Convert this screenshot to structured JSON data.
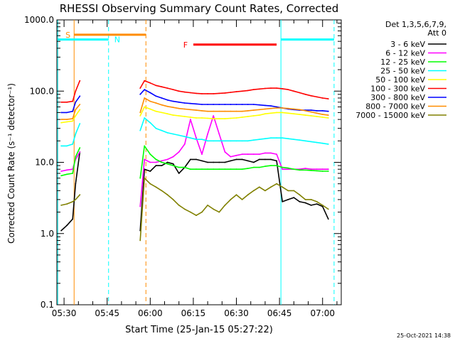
{
  "chart_data": {
    "type": "line",
    "title": "RHESSI Observing Summary Count Rates, Corrected",
    "xlabel": "Start Time (25-Jan-15 05:27:22)",
    "ylabel": "Corrected Count Rate (s⁻¹ detector⁻¹)",
    "y_scale": "log",
    "ylim": [
      0.1,
      1000
    ],
    "y_ticks": [
      {
        "v": 0.1,
        "label": "0.1"
      },
      {
        "v": 1,
        "label": "1.0"
      },
      {
        "v": 10,
        "label": "10.0"
      },
      {
        "v": 100,
        "label": "100.0"
      },
      {
        "v": 1000,
        "label": "1000.0"
      }
    ],
    "xlim_minutes": [
      -2.5,
      96.5
    ],
    "x_ticks": [
      {
        "m": 0,
        "label": "05:30"
      },
      {
        "m": 15,
        "label": "05:45"
      },
      {
        "m": 30,
        "label": "06:00"
      },
      {
        "m": 45,
        "label": "06:15"
      },
      {
        "m": 60,
        "label": "06:30"
      },
      {
        "m": 75,
        "label": "06:45"
      },
      {
        "m": 90,
        "label": "07:00"
      }
    ],
    "legend_header": [
      "Det 1,3,5,6,7,9,",
      "Att 0"
    ],
    "legend_position": "right",
    "series": [
      {
        "name": "3 - 6 keV",
        "color": "#000000",
        "x": [
          -1,
          1,
          3,
          4,
          5.5,
          26.5,
          28,
          30,
          32,
          34,
          36,
          38,
          40,
          42,
          44,
          46,
          48,
          50,
          52,
          54,
          56,
          58,
          60,
          62,
          64,
          66,
          68,
          70,
          72,
          74,
          76,
          78,
          80,
          82,
          84,
          86,
          88,
          90,
          92
        ],
        "y": [
          1.1,
          1.3,
          1.6,
          5,
          14,
          1.1,
          8,
          7.5,
          9,
          9,
          10,
          9.5,
          7,
          8.5,
          11,
          11,
          10.5,
          10,
          10,
          10,
          10,
          10.5,
          11,
          11,
          10.5,
          10,
          11,
          11,
          11,
          10.5,
          2.8,
          3,
          3.2,
          2.8,
          2.7,
          2.5,
          2.6,
          2.4,
          1.6
        ]
      },
      {
        "name": "6 - 12 keV",
        "color": "#ff00ff",
        "x": [
          -1,
          1,
          3,
          4,
          5.5,
          26.5,
          28,
          30,
          32,
          34,
          36,
          38,
          40,
          42,
          44,
          46,
          48,
          50,
          52,
          54,
          56,
          58,
          60,
          62,
          64,
          66,
          68,
          70,
          72,
          74,
          76,
          78,
          80,
          82,
          84,
          86,
          88,
          90,
          92
        ],
        "y": [
          7.5,
          7.8,
          8,
          11,
          14,
          2.4,
          11,
          10,
          10,
          10.5,
          11,
          12,
          14,
          18,
          40,
          22,
          13,
          25,
          45,
          25,
          14,
          12,
          12.5,
          13,
          13,
          13,
          13,
          13.5,
          13.5,
          13,
          8,
          8,
          8,
          8,
          8.2,
          8,
          8,
          8,
          8
        ]
      },
      {
        "name": "12 - 25 keV",
        "color": "#00ff00",
        "x": [
          -1,
          1,
          3,
          4,
          5.5,
          26.5,
          28,
          30,
          32,
          34,
          36,
          38,
          40,
          42,
          44,
          46,
          48,
          50,
          52,
          54,
          56,
          58,
          60,
          62,
          64,
          66,
          68,
          70,
          72,
          74,
          76,
          78,
          80,
          82,
          84,
          86,
          88,
          90,
          92
        ],
        "y": [
          6.5,
          6.8,
          7,
          12,
          16,
          6,
          17,
          13,
          11,
          10,
          9.5,
          9,
          8.5,
          8.5,
          8,
          8,
          8,
          8,
          8,
          8,
          8,
          8,
          8,
          8,
          8.2,
          8.5,
          8.5,
          8.8,
          9,
          9,
          8.5,
          8.3,
          8,
          7.8,
          7.8,
          7.7,
          7.6,
          7.5,
          7.5
        ]
      },
      {
        "name": "25 - 50 keV",
        "color": "#00ffff",
        "x": [
          -1,
          1,
          3,
          4,
          5.5,
          26.5,
          28,
          30,
          32,
          34,
          36,
          38,
          40,
          42,
          44,
          46,
          48,
          50,
          52,
          54,
          56,
          58,
          60,
          62,
          64,
          66,
          68,
          70,
          72,
          74,
          76,
          78,
          80,
          82,
          84,
          86,
          88,
          90,
          92
        ],
        "y": [
          17,
          17,
          18,
          25,
          35,
          28,
          42,
          36,
          30,
          28,
          26,
          25,
          24,
          23,
          22,
          21,
          21,
          20,
          20,
          20,
          20,
          20,
          20,
          20,
          20,
          20.5,
          21,
          21.5,
          22,
          22,
          22,
          21.5,
          21,
          20.5,
          20,
          19.5,
          19,
          18.5,
          18
        ]
      },
      {
        "name": "50 - 100 keV",
        "color": "#ffff00",
        "x": [
          -1,
          1,
          3,
          4,
          5.5,
          26.5,
          28,
          30,
          32,
          34,
          36,
          38,
          40,
          42,
          44,
          46,
          48,
          50,
          52,
          54,
          56,
          58,
          60,
          62,
          64,
          66,
          68,
          70,
          72,
          74,
          76,
          78,
          80,
          82,
          84,
          86,
          88,
          90,
          92
        ],
        "y": [
          36,
          37,
          38,
          45,
          55,
          45,
          60,
          56,
          52,
          50,
          48,
          46,
          45,
          44,
          43,
          42,
          42,
          41.5,
          41,
          41,
          41,
          41.5,
          42,
          43,
          44,
          45,
          46,
          48,
          49,
          50,
          50,
          49,
          48,
          47,
          46,
          45,
          44,
          43,
          42
        ]
      },
      {
        "name": "100 - 300 keV",
        "color": "#ff0000",
        "x": [
          -1,
          1,
          3,
          4,
          5.5,
          26.5,
          28,
          30,
          32,
          34,
          36,
          38,
          40,
          42,
          44,
          46,
          48,
          50,
          52,
          54,
          56,
          58,
          60,
          62,
          64,
          66,
          68,
          70,
          72,
          74,
          76,
          78,
          80,
          82,
          84,
          86,
          88,
          90,
          92
        ],
        "y": [
          70,
          70,
          72,
          100,
          140,
          110,
          140,
          130,
          120,
          115,
          110,
          105,
          100,
          97,
          95,
          93,
          92,
          92,
          92,
          93,
          94,
          96,
          98,
          100,
          102,
          105,
          107,
          109,
          110,
          110,
          108,
          105,
          100,
          95,
          90,
          86,
          83,
          80,
          78
        ]
      },
      {
        "name": "300 - 800 keV",
        "color": "#0000ff",
        "x": [
          -1,
          1,
          3,
          4,
          5.5,
          26.5,
          28,
          30,
          32,
          34,
          36,
          38,
          40,
          42,
          44,
          46,
          48,
          50,
          52,
          54,
          56,
          58,
          60,
          62,
          64,
          66,
          68,
          70,
          72,
          74,
          76,
          78,
          80,
          82,
          84,
          86,
          88,
          90,
          92
        ],
        "y": [
          50,
          50,
          52,
          70,
          85,
          90,
          105,
          95,
          85,
          80,
          75,
          72,
          70,
          68,
          67,
          66,
          65,
          65,
          65,
          65,
          65,
          65,
          65,
          65,
          65,
          65,
          64,
          63,
          62,
          60,
          58,
          56,
          55,
          54,
          54,
          54,
          53,
          53,
          52
        ]
      },
      {
        "name": "800 - 7000 keV",
        "color": "#ff8c00",
        "x": [
          -1,
          1,
          3,
          4,
          5.5,
          26.5,
          28,
          30,
          32,
          34,
          36,
          38,
          40,
          42,
          44,
          46,
          48,
          50,
          52,
          54,
          56,
          58,
          60,
          62,
          64,
          66,
          68,
          70,
          72,
          74,
          76,
          78,
          80,
          82,
          84,
          86,
          88,
          90,
          92
        ],
        "y": [
          40,
          40,
          41,
          55,
          65,
          50,
          80,
          72,
          68,
          64,
          61,
          59,
          57,
          56,
          55,
          54,
          53,
          52,
          52,
          52,
          52,
          52,
          52,
          52,
          53,
          54,
          55,
          56,
          57,
          58,
          58,
          57,
          56,
          55,
          53,
          51,
          49,
          47,
          46
        ]
      },
      {
        "name": "7000 - 15000 keV",
        "color": "#808000",
        "x": [
          -1,
          1,
          3,
          4,
          5.5,
          26.5,
          28,
          30,
          32,
          34,
          36,
          38,
          40,
          42,
          44,
          46,
          48,
          50,
          52,
          54,
          56,
          58,
          60,
          62,
          64,
          66,
          68,
          70,
          72,
          74,
          76,
          78,
          80,
          82,
          84,
          86,
          88,
          90,
          92
        ],
        "y": [
          2.5,
          2.6,
          2.8,
          3,
          3.5,
          0.8,
          6,
          5,
          4.5,
          4,
          3.5,
          3,
          2.5,
          2.2,
          2,
          1.8,
          2,
          2.5,
          2.2,
          2,
          2.5,
          3,
          3.5,
          3,
          3.5,
          4,
          4.5,
          4,
          4.5,
          5,
          4.5,
          4,
          4,
          3.5,
          3,
          3,
          2.8,
          2.5,
          2.2
        ]
      }
    ],
    "markers": [
      {
        "type": "vline",
        "m": 3.5,
        "color": "#ff8c00",
        "style": "solid"
      },
      {
        "type": "vline",
        "m": 28.5,
        "color": "#ff8c00",
        "style": "dashed"
      },
      {
        "type": "vline",
        "m": -2.2,
        "color": "#00ffff",
        "style": "solid"
      },
      {
        "type": "vline",
        "m": 15.5,
        "color": "#00ffff",
        "style": "dashed"
      },
      {
        "type": "vline",
        "m": 75.5,
        "color": "#00ffff",
        "style": "solid"
      },
      {
        "type": "vline",
        "m": 94,
        "color": "#00ffff",
        "style": "dashed"
      }
    ],
    "bars": [
      {
        "label": "S",
        "m_start": 3.5,
        "m_end": 28.5,
        "level": 620,
        "color": "#ff8c00",
        "label_m": 0.5
      },
      {
        "label": "N",
        "m_start": -2.2,
        "m_end": 15.5,
        "level": 530,
        "color": "#00ffff",
        "label_m": 17.5
      },
      {
        "label": "F",
        "m_start": 45,
        "m_end": 74,
        "level": 450,
        "color": "#ff0000",
        "label_m": 41.5
      },
      {
        "label": "",
        "m_start": 75.5,
        "m_end": 94,
        "level": 530,
        "color": "#00ffff",
        "label_m": null
      }
    ]
  },
  "footer": {
    "timestamp": "25-Oct-2021 14:38"
  }
}
